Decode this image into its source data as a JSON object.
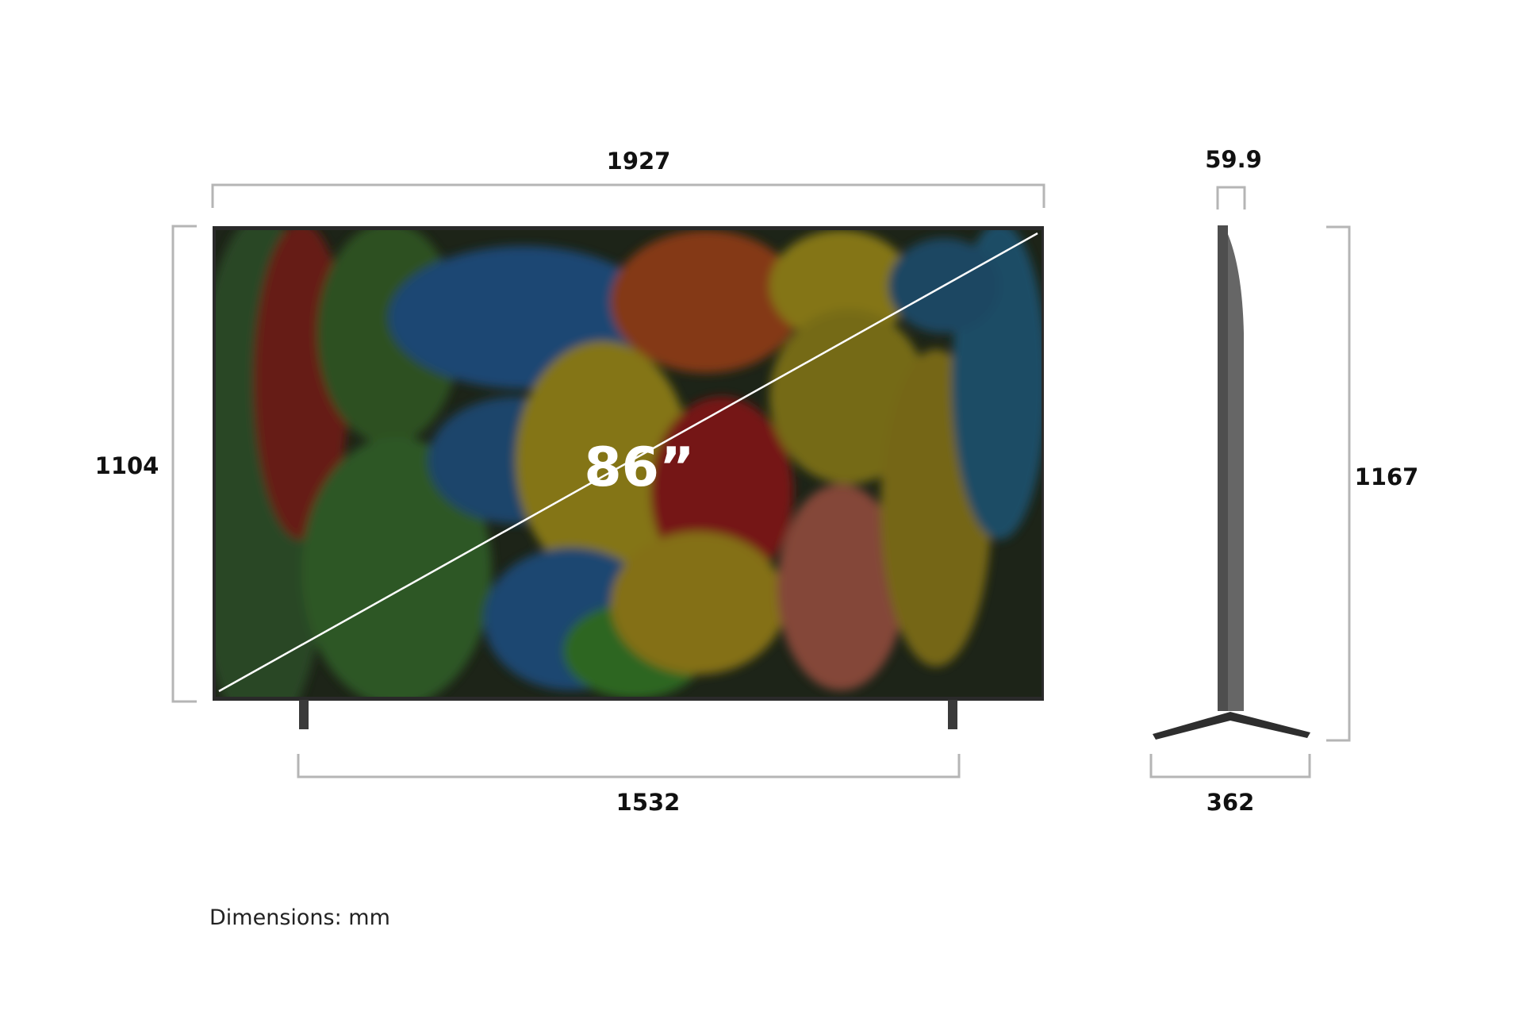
{
  "front_view": {
    "width_label": "1927",
    "height_label": "1104",
    "stand_span_label": "1532",
    "diagonal_label": "86”"
  },
  "side_view": {
    "depth_label": "59.9",
    "height_label": "1167",
    "stand_depth_label": "362"
  },
  "units_note": "Dimensions: mm",
  "colors": {
    "bracket": "#b5b5b5",
    "bezel": "#2a2a2a",
    "side_body": "#555555"
  }
}
